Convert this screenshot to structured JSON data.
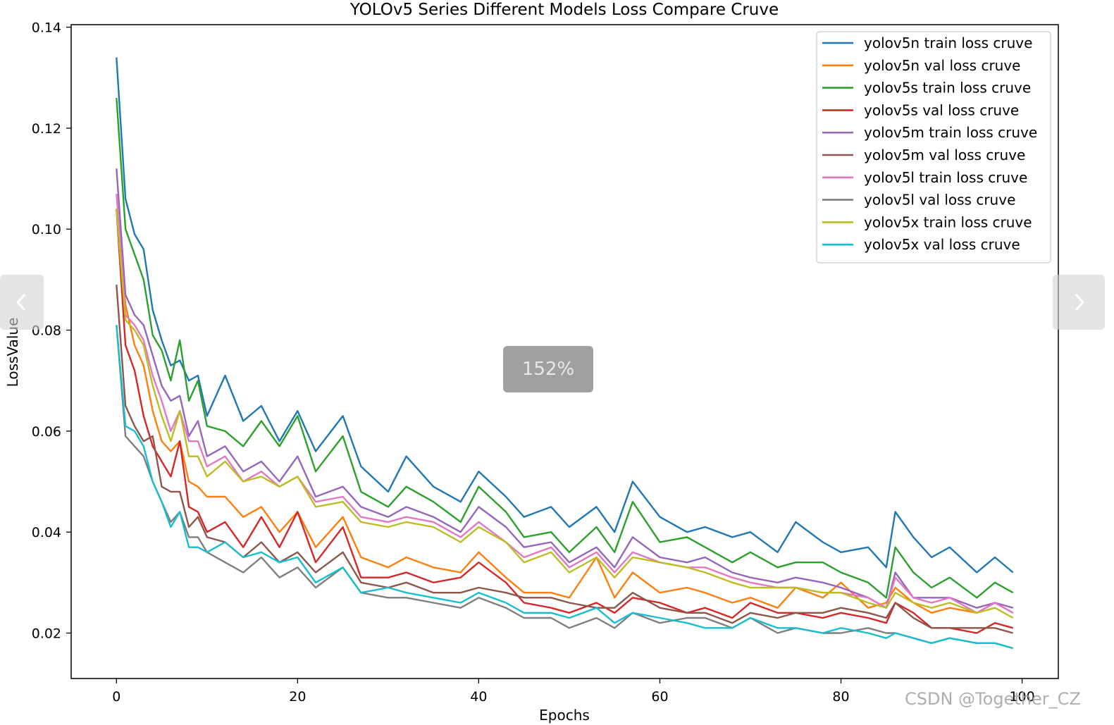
{
  "viewer": {
    "zoom_label": "152%",
    "prev_icon": "chevron-left-icon",
    "next_icon": "chevron-right-icon",
    "watermark": "CSDN @Together_CZ"
  },
  "chart_data": {
    "type": "line",
    "title": "YOLOv5 Series Different Models Loss Compare Cruve",
    "xlabel": "Epochs",
    "ylabel": "LossValue",
    "xlim": [
      -5,
      104
    ],
    "ylim": [
      0.011,
      0.1405
    ],
    "xticks": [
      0,
      20,
      40,
      60,
      80,
      100
    ],
    "yticks": [
      0.02,
      0.04,
      0.06,
      0.08,
      0.1,
      0.12,
      0.14
    ],
    "ytick_labels": [
      "0.02",
      "0.04",
      "0.06",
      "0.08",
      "0.10",
      "0.12",
      "0.14"
    ],
    "grid": false,
    "legend_position": "upper right",
    "series": [
      {
        "name": "yolov5n train loss cruve",
        "color": "#1f77b4",
        "x": [
          0,
          1,
          2,
          3,
          4,
          5,
          6,
          7,
          8,
          9,
          10,
          12,
          14,
          16,
          18,
          20,
          22,
          25,
          27,
          30,
          32,
          35,
          38,
          40,
          43,
          45,
          48,
          50,
          53,
          55,
          57,
          60,
          63,
          65,
          68,
          70,
          73,
          75,
          78,
          80,
          83,
          85,
          86,
          88,
          90,
          92,
          95,
          97,
          99
        ],
        "y": [
          0.134,
          0.106,
          0.099,
          0.096,
          0.084,
          0.078,
          0.073,
          0.074,
          0.07,
          0.071,
          0.063,
          0.071,
          0.062,
          0.065,
          0.058,
          0.064,
          0.056,
          0.063,
          0.053,
          0.048,
          0.055,
          0.049,
          0.046,
          0.052,
          0.047,
          0.043,
          0.045,
          0.041,
          0.045,
          0.04,
          0.05,
          0.043,
          0.04,
          0.041,
          0.039,
          0.04,
          0.036,
          0.042,
          0.038,
          0.036,
          0.037,
          0.033,
          0.044,
          0.039,
          0.035,
          0.037,
          0.032,
          0.035,
          0.032
        ]
      },
      {
        "name": "yolov5n val loss cruve",
        "color": "#ff7f0e",
        "x": [
          0,
          1,
          2,
          3,
          4,
          5,
          6,
          7,
          8,
          9,
          10,
          12,
          14,
          16,
          18,
          20,
          22,
          25,
          27,
          30,
          32,
          35,
          38,
          40,
          43,
          45,
          48,
          50,
          53,
          55,
          57,
          60,
          63,
          65,
          68,
          70,
          73,
          75,
          78,
          80,
          83,
          85,
          86,
          88,
          90,
          92,
          95,
          97,
          99
        ],
        "y": [
          0.104,
          0.085,
          0.077,
          0.073,
          0.064,
          0.058,
          0.056,
          0.058,
          0.05,
          0.049,
          0.047,
          0.047,
          0.043,
          0.045,
          0.04,
          0.044,
          0.037,
          0.043,
          0.035,
          0.033,
          0.035,
          0.033,
          0.032,
          0.036,
          0.031,
          0.028,
          0.028,
          0.027,
          0.035,
          0.027,
          0.032,
          0.028,
          0.029,
          0.028,
          0.026,
          0.027,
          0.025,
          0.029,
          0.027,
          0.03,
          0.025,
          0.026,
          0.029,
          0.026,
          0.024,
          0.025,
          0.024,
          0.026,
          0.024
        ]
      },
      {
        "name": "yolov5s train loss cruve",
        "color": "#2ca02c",
        "x": [
          0,
          1,
          2,
          3,
          4,
          5,
          6,
          7,
          8,
          9,
          10,
          12,
          14,
          16,
          18,
          20,
          22,
          25,
          27,
          30,
          32,
          35,
          38,
          40,
          43,
          45,
          48,
          50,
          53,
          55,
          57,
          60,
          63,
          65,
          68,
          70,
          73,
          75,
          78,
          80,
          83,
          85,
          86,
          88,
          90,
          92,
          95,
          97,
          99
        ],
        "y": [
          0.126,
          0.1,
          0.095,
          0.09,
          0.079,
          0.076,
          0.07,
          0.078,
          0.066,
          0.07,
          0.061,
          0.06,
          0.057,
          0.062,
          0.057,
          0.063,
          0.052,
          0.059,
          0.048,
          0.045,
          0.049,
          0.046,
          0.042,
          0.049,
          0.044,
          0.039,
          0.04,
          0.036,
          0.041,
          0.036,
          0.046,
          0.038,
          0.039,
          0.037,
          0.034,
          0.036,
          0.033,
          0.034,
          0.034,
          0.032,
          0.03,
          0.027,
          0.037,
          0.032,
          0.029,
          0.031,
          0.027,
          0.03,
          0.028
        ]
      },
      {
        "name": "yolov5s val loss cruve",
        "color": "#d62728",
        "x": [
          0,
          1,
          2,
          3,
          4,
          5,
          6,
          7,
          8,
          9,
          10,
          12,
          14,
          16,
          18,
          20,
          22,
          25,
          27,
          30,
          32,
          35,
          38,
          40,
          43,
          45,
          48,
          50,
          53,
          55,
          57,
          60,
          63,
          65,
          68,
          70,
          73,
          75,
          78,
          80,
          83,
          85,
          86,
          88,
          90,
          92,
          95,
          97,
          99
        ],
        "y": [
          0.104,
          0.077,
          0.072,
          0.063,
          0.057,
          0.054,
          0.051,
          0.058,
          0.045,
          0.044,
          0.04,
          0.042,
          0.037,
          0.043,
          0.037,
          0.044,
          0.034,
          0.041,
          0.031,
          0.031,
          0.032,
          0.03,
          0.031,
          0.034,
          0.03,
          0.026,
          0.025,
          0.024,
          0.026,
          0.024,
          0.027,
          0.026,
          0.024,
          0.025,
          0.023,
          0.026,
          0.024,
          0.024,
          0.023,
          0.024,
          0.023,
          0.022,
          0.026,
          0.024,
          0.021,
          0.021,
          0.02,
          0.022,
          0.021
        ]
      },
      {
        "name": "yolov5m train loss cruve",
        "color": "#9467bd",
        "x": [
          0,
          1,
          2,
          3,
          4,
          5,
          6,
          7,
          8,
          9,
          10,
          12,
          14,
          16,
          18,
          20,
          22,
          25,
          27,
          30,
          32,
          35,
          38,
          40,
          43,
          45,
          48,
          50,
          53,
          55,
          57,
          60,
          63,
          65,
          68,
          70,
          73,
          75,
          78,
          80,
          83,
          85,
          86,
          88,
          90,
          92,
          95,
          97,
          99
        ],
        "y": [
          0.112,
          0.087,
          0.083,
          0.081,
          0.075,
          0.069,
          0.066,
          0.067,
          0.059,
          0.062,
          0.055,
          0.057,
          0.052,
          0.054,
          0.05,
          0.055,
          0.047,
          0.049,
          0.045,
          0.043,
          0.045,
          0.043,
          0.04,
          0.045,
          0.041,
          0.037,
          0.038,
          0.034,
          0.037,
          0.033,
          0.039,
          0.035,
          0.034,
          0.035,
          0.032,
          0.031,
          0.03,
          0.031,
          0.03,
          0.029,
          0.027,
          0.025,
          0.032,
          0.027,
          0.027,
          0.027,
          0.025,
          0.026,
          0.025
        ]
      },
      {
        "name": "yolov5m val loss cruve",
        "color": "#8c564b",
        "x": [
          0,
          1,
          2,
          3,
          4,
          5,
          6,
          7,
          8,
          9,
          10,
          12,
          14,
          16,
          18,
          20,
          22,
          25,
          27,
          30,
          32,
          35,
          38,
          40,
          43,
          45,
          48,
          50,
          53,
          55,
          57,
          60,
          63,
          65,
          68,
          70,
          73,
          75,
          78,
          80,
          83,
          85,
          86,
          88,
          90,
          92,
          95,
          97,
          99
        ],
        "y": [
          0.089,
          0.065,
          0.061,
          0.058,
          0.059,
          0.049,
          0.048,
          0.048,
          0.041,
          0.043,
          0.039,
          0.038,
          0.035,
          0.038,
          0.034,
          0.036,
          0.032,
          0.036,
          0.03,
          0.029,
          0.03,
          0.028,
          0.028,
          0.029,
          0.028,
          0.027,
          0.027,
          0.026,
          0.025,
          0.025,
          0.028,
          0.025,
          0.024,
          0.024,
          0.022,
          0.024,
          0.023,
          0.024,
          0.024,
          0.025,
          0.024,
          0.023,
          0.026,
          0.023,
          0.021,
          0.021,
          0.021,
          0.021,
          0.02
        ]
      },
      {
        "name": "yolov5l train loss cruve",
        "color": "#e377c2",
        "x": [
          0,
          1,
          2,
          3,
          4,
          5,
          6,
          7,
          8,
          9,
          10,
          12,
          14,
          16,
          18,
          20,
          22,
          25,
          27,
          30,
          32,
          35,
          38,
          40,
          43,
          45,
          48,
          50,
          53,
          55,
          57,
          60,
          63,
          65,
          68,
          70,
          73,
          75,
          78,
          80,
          83,
          85,
          86,
          88,
          90,
          92,
          95,
          97,
          99
        ],
        "y": [
          0.107,
          0.083,
          0.081,
          0.078,
          0.071,
          0.066,
          0.06,
          0.064,
          0.058,
          0.058,
          0.053,
          0.055,
          0.05,
          0.052,
          0.049,
          0.051,
          0.046,
          0.047,
          0.043,
          0.042,
          0.043,
          0.042,
          0.039,
          0.042,
          0.038,
          0.035,
          0.037,
          0.033,
          0.036,
          0.032,
          0.036,
          0.034,
          0.033,
          0.033,
          0.031,
          0.03,
          0.029,
          0.029,
          0.028,
          0.028,
          0.027,
          0.025,
          0.031,
          0.027,
          0.026,
          0.027,
          0.024,
          0.026,
          0.024
        ]
      },
      {
        "name": "yolov5l val loss cruve",
        "color": "#7f7f7f",
        "x": [
          0,
          1,
          2,
          3,
          4,
          5,
          6,
          7,
          8,
          9,
          10,
          12,
          14,
          16,
          18,
          20,
          22,
          25,
          27,
          30,
          32,
          35,
          38,
          40,
          43,
          45,
          48,
          50,
          53,
          55,
          57,
          60,
          63,
          65,
          68,
          70,
          73,
          75,
          78,
          80,
          83,
          85,
          86,
          88,
          90,
          92,
          95,
          97,
          99
        ],
        "y": [
          0.081,
          0.059,
          0.057,
          0.055,
          0.05,
          0.046,
          0.042,
          0.044,
          0.039,
          0.039,
          0.036,
          0.034,
          0.032,
          0.035,
          0.031,
          0.033,
          0.029,
          0.033,
          0.028,
          0.027,
          0.027,
          0.026,
          0.025,
          0.027,
          0.025,
          0.023,
          0.023,
          0.021,
          0.023,
          0.021,
          0.024,
          0.022,
          0.023,
          0.023,
          0.021,
          0.023,
          0.02,
          0.021,
          0.02,
          0.02,
          0.021,
          0.02,
          0.02,
          0.019,
          0.018,
          0.019,
          0.018,
          0.018,
          0.017
        ]
      },
      {
        "name": "yolov5x train loss cruve",
        "color": "#bcbd22",
        "x": [
          0,
          1,
          2,
          3,
          4,
          5,
          6,
          7,
          8,
          9,
          10,
          12,
          14,
          16,
          18,
          20,
          22,
          25,
          27,
          30,
          32,
          35,
          38,
          40,
          43,
          45,
          48,
          50,
          53,
          55,
          57,
          60,
          63,
          65,
          68,
          70,
          73,
          75,
          78,
          80,
          83,
          85,
          86,
          88,
          90,
          92,
          95,
          97,
          99
        ],
        "y": [
          0.104,
          0.082,
          0.08,
          0.077,
          0.069,
          0.063,
          0.058,
          0.064,
          0.055,
          0.055,
          0.051,
          0.054,
          0.05,
          0.051,
          0.049,
          0.051,
          0.045,
          0.046,
          0.042,
          0.041,
          0.042,
          0.041,
          0.038,
          0.041,
          0.038,
          0.034,
          0.036,
          0.032,
          0.035,
          0.031,
          0.035,
          0.034,
          0.033,
          0.032,
          0.03,
          0.029,
          0.029,
          0.029,
          0.028,
          0.028,
          0.026,
          0.025,
          0.028,
          0.026,
          0.025,
          0.026,
          0.024,
          0.025,
          0.023
        ]
      },
      {
        "name": "yolov5x val loss cruve",
        "color": "#17becf",
        "x": [
          0,
          1,
          2,
          3,
          4,
          5,
          6,
          7,
          8,
          9,
          10,
          12,
          14,
          16,
          18,
          20,
          22,
          25,
          27,
          30,
          32,
          35,
          38,
          40,
          43,
          45,
          48,
          50,
          53,
          55,
          57,
          60,
          63,
          65,
          68,
          70,
          73,
          75,
          78,
          80,
          83,
          85,
          86,
          88,
          90,
          92,
          95,
          97,
          99
        ],
        "y": [
          0.081,
          0.061,
          0.06,
          0.057,
          0.05,
          0.046,
          0.041,
          0.044,
          0.037,
          0.037,
          0.036,
          0.038,
          0.035,
          0.036,
          0.034,
          0.035,
          0.03,
          0.033,
          0.028,
          0.029,
          0.028,
          0.027,
          0.026,
          0.028,
          0.026,
          0.024,
          0.024,
          0.023,
          0.025,
          0.022,
          0.024,
          0.023,
          0.022,
          0.021,
          0.021,
          0.023,
          0.021,
          0.021,
          0.02,
          0.021,
          0.02,
          0.019,
          0.02,
          0.019,
          0.018,
          0.019,
          0.018,
          0.018,
          0.017
        ]
      }
    ]
  }
}
